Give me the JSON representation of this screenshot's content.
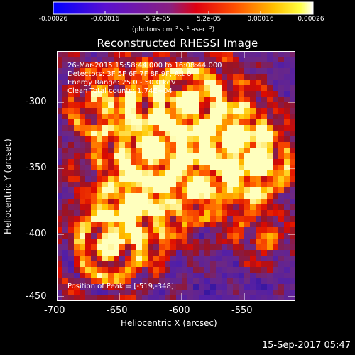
{
  "colorbar": {
    "tick_labels": [
      "-0.00026",
      "-0.00016",
      "-5.2e-05",
      "5.2e-05",
      "0.00016",
      "0.00026"
    ],
    "units": "(photons cm⁻² s⁻¹ asec⁻²)",
    "range": [
      -0.00026,
      0.00026
    ],
    "colors": [
      "#0000ff",
      "#6a00ff",
      "#a020a0",
      "#ff0000",
      "#ff8000",
      "#ffff00",
      "#ffffff"
    ]
  },
  "title": "Reconstructed RHESSI Image",
  "info": {
    "time_range": "26-Mar-2015 15:58:44.000 to 16:08:44.000",
    "detectors": "Detectors: 3F 5F 6F 7F 8F 9F, Att 0",
    "energy": "Energy Range: 25.0 - 50.0 keV",
    "clean": "Clean    Total counts: 1.74E+04"
  },
  "peak": "Position of Peak = [-519,-348]",
  "axes": {
    "xlabel": "Heliocentric X (arcsec)",
    "ylabel": "Heliocentric Y (arcsec)",
    "xticks": [
      "-700",
      "-650",
      "-600",
      "-550"
    ],
    "yticks": [
      "-300",
      "-350",
      "-400",
      "-450"
    ],
    "xlim": [
      -700,
      -510
    ],
    "ylim": [
      -455,
      -268
    ]
  },
  "timestamp": "15-Sep-2017 05:47"
}
